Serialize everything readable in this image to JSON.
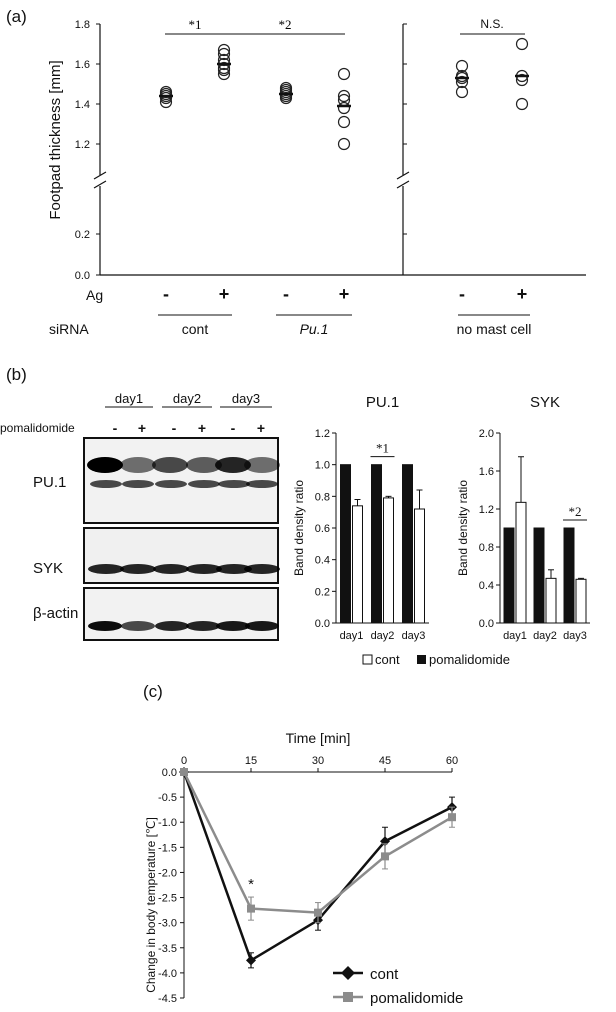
{
  "panel_labels": {
    "a": "(a)",
    "b": "(b)",
    "c": "(c)"
  },
  "panel_a": {
    "ylabel": "Footpad thickness [mm]",
    "row_labels": {
      "ag": "Ag",
      "sirna": "siRNA"
    },
    "ag_signs": [
      "-",
      "+",
      "-",
      "+",
      "-",
      "+"
    ],
    "group_labels": [
      "cont",
      "Pu.1",
      "no mast cell"
    ],
    "sig_labels": [
      "*1",
      "*2",
      "N.S."
    ]
  },
  "panel_b": {
    "days": [
      "day1",
      "day2",
      "day3"
    ],
    "treatment_label": "pomalidomide",
    "treatment_signs": [
      "-",
      "+",
      "-",
      "+",
      "-",
      "+"
    ],
    "blot_labels": [
      "PU.1",
      "SYK",
      "β-actin"
    ],
    "legend": {
      "cont": "cont",
      "pomalidomide": "pomalidomide"
    },
    "sig_labels": [
      "*1",
      "*2"
    ]
  },
  "chart_data": [
    {
      "type": "scatter",
      "panel": "a",
      "ylabel": "Footpad thickness [mm]",
      "yticks": [
        "0.0",
        "0.2",
        "1.2",
        "1.4",
        "1.6",
        "1.8"
      ],
      "ylim": [
        0,
        1.8
      ],
      "axis_break": true,
      "categories": [
        "cont -",
        "cont +",
        "Pu.1 -",
        "Pu.1 +",
        "no mast cell -",
        "no mast cell +"
      ],
      "points": [
        [
          1.41,
          1.43,
          1.44,
          1.45,
          1.46
        ],
        [
          1.55,
          1.57,
          1.58,
          1.6,
          1.62,
          1.65,
          1.67
        ],
        [
          1.43,
          1.44,
          1.45,
          1.46,
          1.47,
          1.48
        ],
        [
          1.2,
          1.31,
          1.38,
          1.42,
          1.44,
          1.55
        ],
        [
          1.46,
          1.51,
          1.53,
          1.54,
          1.59
        ],
        [
          1.4,
          1.52,
          1.54,
          1.7
        ]
      ],
      "means": [
        1.44,
        1.6,
        1.45,
        1.39,
        1.53,
        1.54
      ]
    },
    {
      "type": "bar",
      "panel": "b",
      "title": "PU.1",
      "ylabel": "Band density ratio",
      "categories": [
        "day1",
        "day2",
        "day3"
      ],
      "yticks": [
        "0.0",
        "0.2",
        "0.4",
        "0.6",
        "0.8",
        "1.0",
        "1.2"
      ],
      "ylim": [
        0,
        1.2
      ],
      "series": [
        {
          "name": "pomalidomide",
          "color": "#111111",
          "values": [
            1.0,
            1.0,
            1.0
          ],
          "errors": [
            0,
            0,
            0
          ]
        },
        {
          "name": "cont",
          "color": "#ffffff",
          "values": [
            0.74,
            0.79,
            0.72
          ],
          "errors": [
            0.04,
            0.01,
            0.12
          ]
        }
      ],
      "annotation": {
        "label": "*1",
        "category": "day2"
      }
    },
    {
      "type": "bar",
      "panel": "b",
      "title": "SYK",
      "ylabel": "Band density ratio",
      "categories": [
        "day1",
        "day2",
        "day3"
      ],
      "yticks": [
        "0.0",
        "0.4",
        "0.8",
        "1.2",
        "1.6",
        "2.0"
      ],
      "ylim": [
        0,
        2.0
      ],
      "series": [
        {
          "name": "pomalidomide",
          "color": "#111111",
          "values": [
            1.0,
            1.0,
            1.0
          ],
          "errors": [
            0,
            0,
            0
          ]
        },
        {
          "name": "cont",
          "color": "#ffffff",
          "values": [
            1.27,
            0.47,
            0.46
          ],
          "errors": [
            0.48,
            0.09,
            0.01
          ]
        }
      ],
      "annotation": {
        "label": "*2",
        "category": "day3"
      }
    },
    {
      "type": "line",
      "panel": "c",
      "xlabel": "Time [min]",
      "ylabel": "Change in body temperature [℃]",
      "x": [
        0,
        15,
        30,
        45,
        60
      ],
      "xticks": [
        "0",
        "15",
        "30",
        "45",
        "60"
      ],
      "yticks": [
        "0.0",
        "-0.5",
        "-1.0",
        "-1.5",
        "-2.0",
        "-2.5",
        "-3.0",
        "-3.5",
        "-4.0",
        "-4.5"
      ],
      "ylim": [
        -4.5,
        0
      ],
      "series": [
        {
          "name": "cont",
          "color": "#111111",
          "marker": "diamond",
          "values": [
            0,
            -3.75,
            -2.95,
            -1.38,
            -0.7
          ],
          "errors": [
            0,
            0.15,
            0.2,
            0.28,
            0.2
          ]
        },
        {
          "name": "pomalidomide",
          "color": "#8c8c8c",
          "marker": "square",
          "values": [
            0,
            -2.72,
            -2.8,
            -1.68,
            -0.9
          ],
          "errors": [
            0,
            0.23,
            0.2,
            0.25,
            0.2
          ]
        }
      ],
      "annotation": {
        "label": "*",
        "x": 15
      }
    }
  ]
}
